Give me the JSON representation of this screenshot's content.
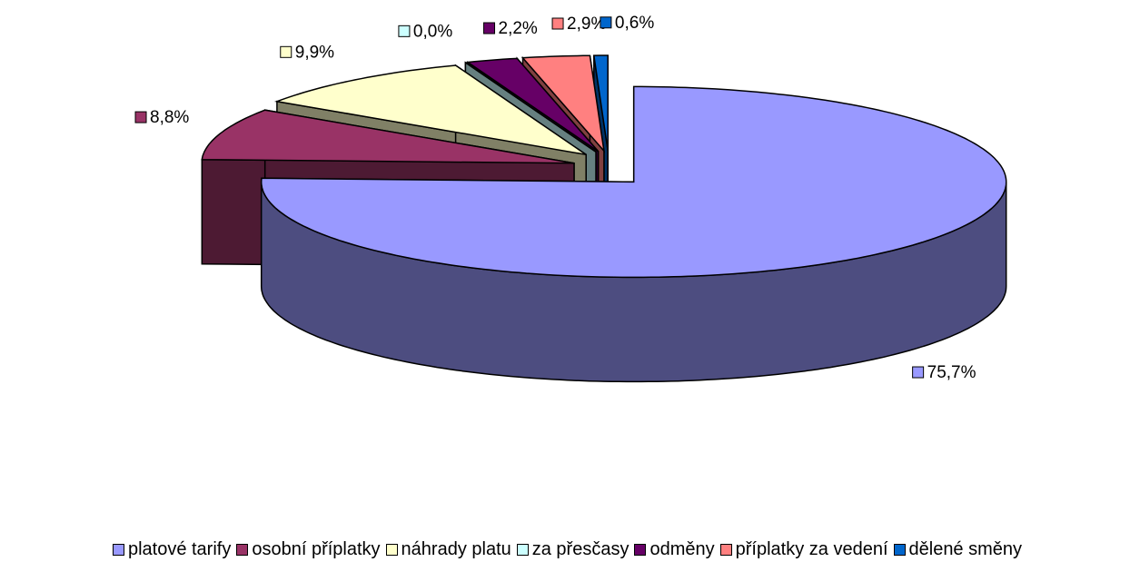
{
  "chart_data": {
    "type": "pie3d",
    "categories": [
      "platové tarify",
      "osobní příplatky",
      "náhrady platu",
      "za přesčasy",
      "odměny",
      "příplatky za vedení",
      "dělené směny"
    ],
    "values": [
      75.7,
      8.8,
      9.9,
      0.0,
      2.2,
      2.9,
      0.6
    ],
    "value_labels": [
      "75,7%",
      "8,8%",
      "9,9%",
      "0,0%",
      "2,2%",
      "2,9%",
      "0,6%"
    ],
    "colors": [
      "#9999ff",
      "#993366",
      "#ffffcc",
      "#ccffff",
      "#660066",
      "#ff8080",
      "#0066cc"
    ],
    "legend": "bottom"
  }
}
